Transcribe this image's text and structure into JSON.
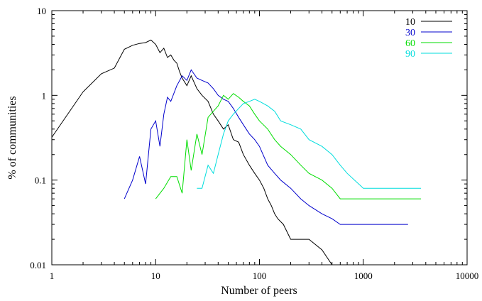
{
  "chart_data": {
    "type": "line",
    "title": "",
    "xlabel": "Number of peers",
    "ylabel": "% of communities",
    "xscale": "log",
    "yscale": "log",
    "xlim": [
      1,
      10000
    ],
    "ylim": [
      0.01,
      10
    ],
    "xticks": [
      1,
      10,
      100,
      1000,
      10000
    ],
    "xtick_labels": [
      "1",
      "10",
      "100",
      "1000",
      "10000"
    ],
    "yticks": [
      0.01,
      0.1,
      1,
      10
    ],
    "ytick_labels": [
      "0.01",
      "0.1",
      "1",
      "10"
    ],
    "grid": false,
    "legend_position": "top-right",
    "series": [
      {
        "name": "10",
        "color": "#000000",
        "x": [
          1,
          2,
          3,
          4,
          5,
          6,
          7,
          8,
          9,
          10,
          11,
          12,
          13,
          14,
          15,
          16,
          17,
          18,
          20,
          22,
          25,
          28,
          32,
          36,
          40,
          45,
          50,
          56,
          63,
          70,
          80,
          90,
          100,
          110,
          120,
          130,
          140,
          150,
          170,
          200,
          250,
          300,
          400,
          500,
          1000,
          1600
        ],
        "y": [
          0.32,
          1.1,
          1.8,
          2.1,
          3.5,
          3.9,
          4.1,
          4.2,
          4.5,
          4.0,
          3.2,
          3.6,
          2.8,
          3.0,
          2.6,
          2.4,
          1.9,
          1.6,
          1.3,
          1.7,
          1.2,
          1.0,
          0.85,
          0.6,
          0.5,
          0.4,
          0.45,
          0.3,
          0.28,
          0.2,
          0.15,
          0.12,
          0.1,
          0.08,
          0.06,
          0.05,
          0.04,
          0.035,
          0.03,
          0.02,
          0.02,
          0.02,
          0.015,
          0.01,
          0.01,
          0.01
        ]
      },
      {
        "name": "30",
        "color": "#0000cc",
        "x": [
          5,
          6,
          7,
          8,
          9,
          10,
          11,
          12,
          13,
          14,
          16,
          18,
          20,
          22,
          25,
          28,
          32,
          36,
          40,
          45,
          50,
          56,
          63,
          70,
          80,
          90,
          100,
          120,
          140,
          160,
          200,
          250,
          300,
          400,
          500,
          600,
          700,
          1000,
          2000,
          2700
        ],
        "y": [
          0.06,
          0.1,
          0.19,
          0.09,
          0.4,
          0.5,
          0.25,
          0.6,
          0.95,
          0.85,
          1.3,
          1.7,
          1.5,
          2.0,
          1.6,
          1.5,
          1.4,
          1.2,
          1.0,
          0.9,
          0.85,
          0.7,
          0.55,
          0.45,
          0.35,
          0.3,
          0.25,
          0.15,
          0.12,
          0.1,
          0.08,
          0.06,
          0.05,
          0.04,
          0.035,
          0.03,
          0.03,
          0.03,
          0.03,
          0.03
        ]
      },
      {
        "name": "60",
        "color": "#00dd00",
        "x": [
          10,
          12,
          14,
          16,
          18,
          20,
          22,
          25,
          28,
          32,
          36,
          40,
          45,
          50,
          56,
          63,
          70,
          80,
          90,
          100,
          120,
          140,
          160,
          200,
          250,
          300,
          400,
          500,
          600,
          700,
          1000,
          2000,
          3600
        ],
        "y": [
          0.06,
          0.08,
          0.11,
          0.11,
          0.07,
          0.3,
          0.13,
          0.35,
          0.2,
          0.55,
          0.65,
          0.75,
          1.0,
          0.9,
          1.05,
          0.95,
          0.85,
          0.75,
          0.6,
          0.5,
          0.4,
          0.3,
          0.25,
          0.2,
          0.15,
          0.12,
          0.1,
          0.08,
          0.06,
          0.06,
          0.06,
          0.06,
          0.06
        ]
      },
      {
        "name": "90",
        "color": "#00dddd",
        "x": [
          25,
          28,
          32,
          36,
          40,
          45,
          50,
          56,
          63,
          70,
          80,
          90,
          100,
          120,
          140,
          160,
          200,
          250,
          300,
          400,
          500,
          600,
          700,
          1000,
          2000,
          3600
        ],
        "y": [
          0.08,
          0.08,
          0.15,
          0.12,
          0.2,
          0.35,
          0.5,
          0.6,
          0.7,
          0.8,
          0.85,
          0.9,
          0.85,
          0.75,
          0.65,
          0.5,
          0.45,
          0.4,
          0.3,
          0.25,
          0.2,
          0.15,
          0.12,
          0.08,
          0.08,
          0.08
        ]
      }
    ]
  }
}
